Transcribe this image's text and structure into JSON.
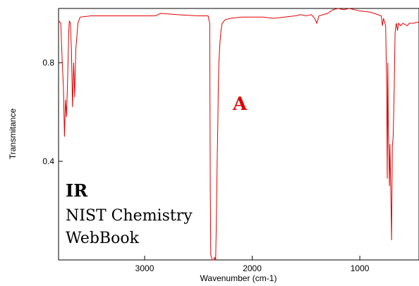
{
  "chart_data": {
    "type": "line",
    "xlabel": "Wavenumber (cm-1)",
    "ylabel": "Transmitance",
    "x_reversed": true,
    "xlim": [
      3800,
      450
    ],
    "ylim": [
      0.0,
      1.02
    ],
    "x_ticks": [
      3000,
      2000,
      1000
    ],
    "y_ticks": [
      0.4,
      0.8
    ],
    "grid": false,
    "series": [
      {
        "color": "#e00000",
        "points": [
          [
            3800,
            0.97
          ],
          [
            3780,
            0.96
          ],
          [
            3765,
            0.8
          ],
          [
            3755,
            0.7
          ],
          [
            3745,
            0.5
          ],
          [
            3735,
            0.65
          ],
          [
            3725,
            0.58
          ],
          [
            3715,
            0.75
          ],
          [
            3705,
            0.93
          ],
          [
            3700,
            0.97
          ],
          [
            3690,
            0.96
          ],
          [
            3680,
            0.85
          ],
          [
            3670,
            0.62
          ],
          [
            3660,
            0.8
          ],
          [
            3650,
            0.66
          ],
          [
            3640,
            0.85
          ],
          [
            3620,
            0.96
          ],
          [
            3600,
            0.985
          ],
          [
            3500,
            0.99
          ],
          [
            3300,
            0.99
          ],
          [
            3000,
            0.99
          ],
          [
            2900,
            0.99
          ],
          [
            2850,
            1.0
          ],
          [
            2700,
            0.995
          ],
          [
            2500,
            0.99
          ],
          [
            2410,
            0.99
          ],
          [
            2395,
            0.96
          ],
          [
            2390,
            0.3
          ],
          [
            2385,
            0.02
          ],
          [
            2370,
            0.0
          ],
          [
            2360,
            0.0
          ],
          [
            2350,
            0.01
          ],
          [
            2340,
            0.0
          ],
          [
            2335,
            0.12
          ],
          [
            2330,
            0.25
          ],
          [
            2325,
            0.42
          ],
          [
            2320,
            0.55
          ],
          [
            2315,
            0.7
          ],
          [
            2310,
            0.8
          ],
          [
            2300,
            0.88
          ],
          [
            2290,
            0.93
          ],
          [
            2280,
            0.96
          ],
          [
            2250,
            0.975
          ],
          [
            2200,
            0.98
          ],
          [
            2100,
            0.985
          ],
          [
            2000,
            0.985
          ],
          [
            1900,
            0.985
          ],
          [
            1800,
            0.98
          ],
          [
            1700,
            0.985
          ],
          [
            1600,
            0.99
          ],
          [
            1550,
            0.995
          ],
          [
            1500,
            0.99
          ],
          [
            1450,
            0.995
          ],
          [
            1420,
            0.98
          ],
          [
            1400,
            0.96
          ],
          [
            1380,
            0.99
          ],
          [
            1300,
            1.0
          ],
          [
            1250,
            1.015
          ],
          [
            1200,
            1.02
          ],
          [
            1150,
            1.015
          ],
          [
            1100,
            1.02
          ],
          [
            1000,
            1.01
          ],
          [
            900,
            1.005
          ],
          [
            800,
            0.99
          ],
          [
            790,
            0.95
          ],
          [
            780,
            0.98
          ],
          [
            760,
            0.95
          ],
          [
            750,
            0.7
          ],
          [
            745,
            0.33
          ],
          [
            740,
            0.8
          ],
          [
            735,
            0.55
          ],
          [
            725,
            0.3
          ],
          [
            720,
            0.47
          ],
          [
            712,
            0.28
          ],
          [
            705,
            0.08
          ],
          [
            698,
            0.46
          ],
          [
            690,
            0.5
          ],
          [
            680,
            0.7
          ],
          [
            672,
            0.92
          ],
          [
            665,
            0.95
          ],
          [
            660,
            0.96
          ],
          [
            650,
            0.93
          ],
          [
            640,
            0.96
          ],
          [
            620,
            0.95
          ],
          [
            600,
            0.96
          ],
          [
            560,
            0.95
          ],
          [
            540,
            0.96
          ],
          [
            500,
            0.96
          ],
          [
            450,
            0.965
          ]
        ]
      }
    ]
  },
  "annotations": {
    "peak_label": "A",
    "peak_label_color": "#e00000",
    "title_line": "IR",
    "source_line1": "NIST Chemistry",
    "source_line2": "WebBook"
  }
}
